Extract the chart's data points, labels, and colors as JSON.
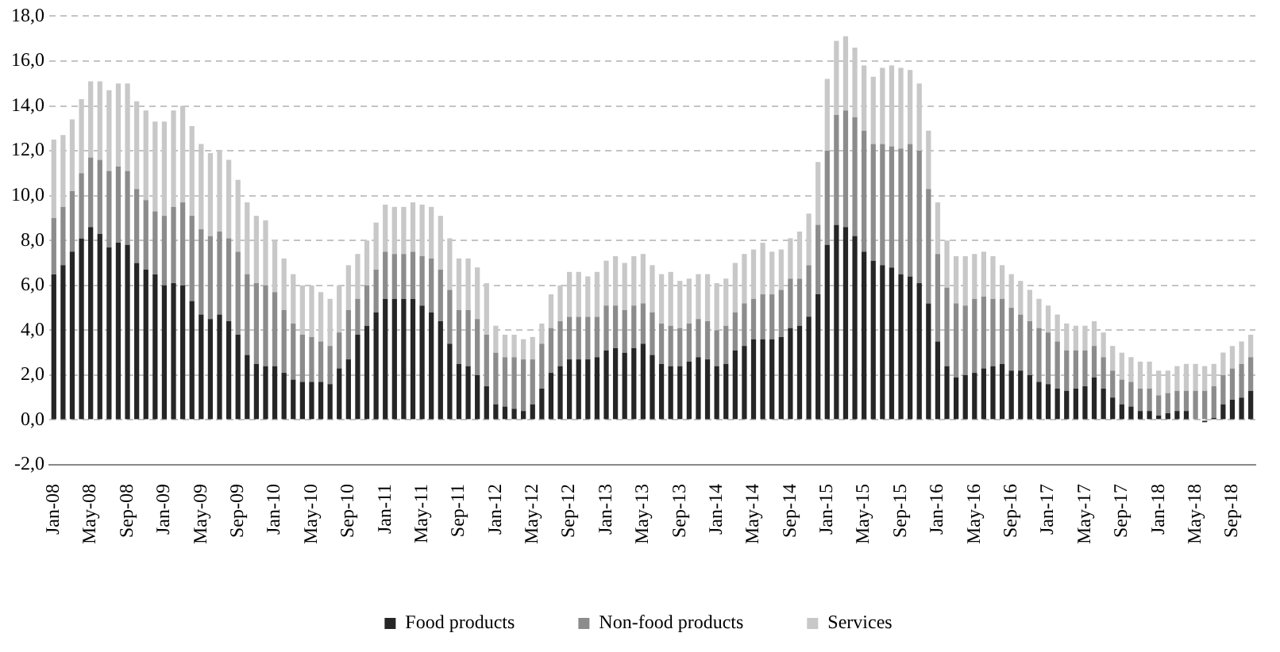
{
  "chart_data": {
    "type": "bar",
    "stacked": true,
    "categories": [
      "Jan-08",
      null,
      null,
      null,
      "May-08",
      null,
      null,
      null,
      "Sep-08",
      null,
      null,
      null,
      "Jan-09",
      null,
      null,
      null,
      "May-09",
      null,
      null,
      null,
      "Sep-09",
      null,
      null,
      null,
      "Jan-10",
      null,
      null,
      null,
      "May-10",
      null,
      null,
      null,
      "Sep-10",
      null,
      null,
      null,
      "Jan-11",
      null,
      null,
      null,
      "May-11",
      null,
      null,
      null,
      "Sep-11",
      null,
      null,
      null,
      "Jan-12",
      null,
      null,
      null,
      "May-12",
      null,
      null,
      null,
      "Sep-12",
      null,
      null,
      null,
      "Jan-13",
      null,
      null,
      null,
      "May-13",
      null,
      null,
      null,
      "Sep-13",
      null,
      null,
      null,
      "Jan-14",
      null,
      null,
      null,
      "May-14",
      null,
      null,
      null,
      "Sep-14",
      null,
      null,
      null,
      "Jan-15",
      null,
      null,
      null,
      "May-15",
      null,
      null,
      null,
      "Sep-15",
      null,
      null,
      null,
      "Jan-16",
      null,
      null,
      null,
      "May-16",
      null,
      null,
      null,
      "Sep-16",
      null,
      null,
      null,
      "Jan-17",
      null,
      null,
      null,
      "May-17",
      null,
      null,
      null,
      "Sep-17",
      null,
      null,
      null,
      "Jan-18",
      null,
      null,
      null,
      "May-18",
      null,
      null,
      null,
      "Sep-18",
      null,
      null
    ],
    "series": [
      {
        "name": "Food products",
        "color": "#262626",
        "values": [
          6.5,
          6.9,
          7.5,
          8.1,
          8.6,
          8.3,
          7.7,
          7.9,
          7.8,
          7.0,
          6.7,
          6.5,
          6.0,
          6.1,
          6.0,
          5.3,
          4.7,
          4.5,
          4.7,
          4.4,
          3.8,
          2.9,
          2.5,
          2.4,
          2.4,
          2.1,
          1.8,
          1.7,
          1.7,
          1.7,
          1.6,
          2.3,
          2.7,
          3.8,
          4.2,
          4.8,
          5.4,
          5.4,
          5.4,
          5.4,
          5.1,
          4.8,
          4.4,
          3.4,
          2.5,
          2.4,
          2.0,
          1.5,
          0.7,
          0.6,
          0.5,
          0.4,
          0.7,
          1.4,
          2.1,
          2.4,
          2.7,
          2.7,
          2.7,
          2.8,
          3.1,
          3.2,
          3.0,
          3.2,
          3.4,
          2.9,
          2.5,
          2.4,
          2.4,
          2.6,
          2.8,
          2.7,
          2.4,
          2.5,
          3.1,
          3.3,
          3.6,
          3.6,
          3.6,
          3.7,
          4.1,
          4.2,
          4.6,
          5.6,
          7.8,
          8.7,
          8.6,
          8.2,
          7.5,
          7.1,
          6.9,
          6.8,
          6.5,
          6.4,
          6.1,
          5.2,
          3.5,
          2.4,
          1.9,
          2.0,
          2.1,
          2.3,
          2.4,
          2.5,
          2.2,
          2.2,
          2.0,
          1.7,
          1.6,
          1.4,
          1.3,
          1.4,
          1.5,
          1.9,
          1.4,
          1.0,
          0.7,
          0.6,
          0.4,
          0.4,
          0.2,
          0.3,
          0.4,
          0.4,
          0.0,
          -0.1,
          0.1,
          0.7,
          0.9,
          1.0,
          1.3
        ]
      },
      {
        "name": "Non-food products",
        "color": "#8c8c8c",
        "values": [
          2.5,
          2.6,
          2.7,
          2.9,
          3.1,
          3.3,
          3.4,
          3.4,
          3.3,
          3.3,
          3.1,
          2.8,
          3.1,
          3.4,
          3.7,
          3.8,
          3.8,
          3.7,
          3.7,
          3.7,
          3.7,
          3.6,
          3.6,
          3.6,
          3.3,
          2.8,
          2.5,
          2.1,
          2.0,
          1.8,
          1.7,
          1.6,
          2.2,
          1.6,
          1.8,
          1.9,
          2.1,
          2.0,
          2.0,
          2.1,
          2.2,
          2.4,
          2.3,
          2.4,
          2.4,
          2.5,
          2.5,
          2.3,
          2.3,
          2.2,
          2.3,
          2.3,
          2.0,
          2.0,
          2.0,
          2.0,
          1.9,
          1.9,
          1.9,
          1.8,
          2.0,
          1.9,
          1.9,
          1.9,
          1.8,
          1.9,
          1.8,
          1.8,
          1.7,
          1.7,
          1.7,
          1.7,
          1.6,
          1.7,
          1.7,
          1.9,
          1.8,
          2.0,
          2.0,
          2.1,
          2.2,
          2.1,
          2.3,
          3.1,
          4.2,
          4.9,
          5.2,
          5.3,
          5.4,
          5.2,
          5.4,
          5.4,
          5.6,
          5.9,
          5.9,
          5.1,
          3.9,
          3.5,
          3.3,
          3.1,
          3.3,
          3.2,
          3.0,
          2.9,
          2.8,
          2.5,
          2.4,
          2.4,
          2.3,
          2.1,
          1.8,
          1.7,
          1.6,
          1.4,
          1.4,
          1.2,
          1.1,
          1.1,
          1.0,
          1.0,
          0.9,
          0.9,
          0.9,
          0.9,
          1.3,
          1.3,
          1.4,
          1.3,
          1.4,
          1.5,
          1.5
        ]
      },
      {
        "name": "Services",
        "color": "#c8c8c8",
        "values": [
          3.5,
          3.2,
          3.2,
          3.3,
          3.4,
          3.5,
          3.6,
          3.7,
          3.9,
          3.9,
          4.0,
          4.0,
          4.2,
          4.3,
          4.3,
          4.0,
          3.8,
          3.7,
          3.6,
          3.5,
          3.2,
          3.2,
          3.0,
          2.9,
          2.3,
          2.3,
          2.2,
          2.2,
          2.3,
          2.2,
          2.1,
          2.1,
          2.0,
          2.0,
          2.0,
          2.1,
          2.1,
          2.1,
          2.1,
          2.2,
          2.3,
          2.3,
          2.4,
          2.3,
          2.3,
          2.3,
          2.3,
          2.3,
          1.2,
          1.0,
          1.0,
          0.9,
          1.0,
          0.9,
          1.5,
          1.6,
          2.0,
          2.0,
          1.8,
          2.0,
          2.0,
          2.2,
          2.1,
          2.2,
          2.2,
          2.1,
          2.2,
          2.4,
          2.1,
          2.0,
          2.0,
          2.1,
          2.1,
          2.1,
          2.2,
          2.2,
          2.2,
          2.3,
          1.9,
          1.8,
          1.8,
          2.1,
          2.3,
          2.8,
          3.2,
          3.3,
          3.3,
          3.1,
          2.9,
          3.0,
          3.4,
          3.6,
          3.6,
          3.3,
          3.0,
          2.6,
          2.3,
          2.1,
          2.1,
          2.2,
          2.0,
          2.0,
          1.9,
          1.5,
          1.5,
          1.5,
          1.4,
          1.3,
          1.2,
          1.2,
          1.2,
          1.1,
          1.1,
          1.1,
          1.1,
          1.1,
          1.2,
          1.1,
          1.2,
          1.2,
          1.1,
          1.0,
          1.1,
          1.2,
          1.2,
          1.1,
          1.0,
          1.0,
          1.0,
          1.0,
          1.0
        ]
      }
    ],
    "ylim": [
      -2,
      18
    ],
    "yticks": [
      {
        "value": -2,
        "label": "-2,0"
      },
      {
        "value": 0,
        "label": "0,0"
      },
      {
        "value": 2,
        "label": "2,0"
      },
      {
        "value": 4,
        "label": "4,0"
      },
      {
        "value": 6,
        "label": "6,0"
      },
      {
        "value": 8,
        "label": "8,0"
      },
      {
        "value": 10,
        "label": "10,0"
      },
      {
        "value": 12,
        "label": "12,0"
      },
      {
        "value": 14,
        "label": "14,0"
      },
      {
        "value": 16,
        "label": "16,0"
      },
      {
        "value": 18,
        "label": "18,0"
      }
    ],
    "grid": "y",
    "legend": "bottom"
  }
}
